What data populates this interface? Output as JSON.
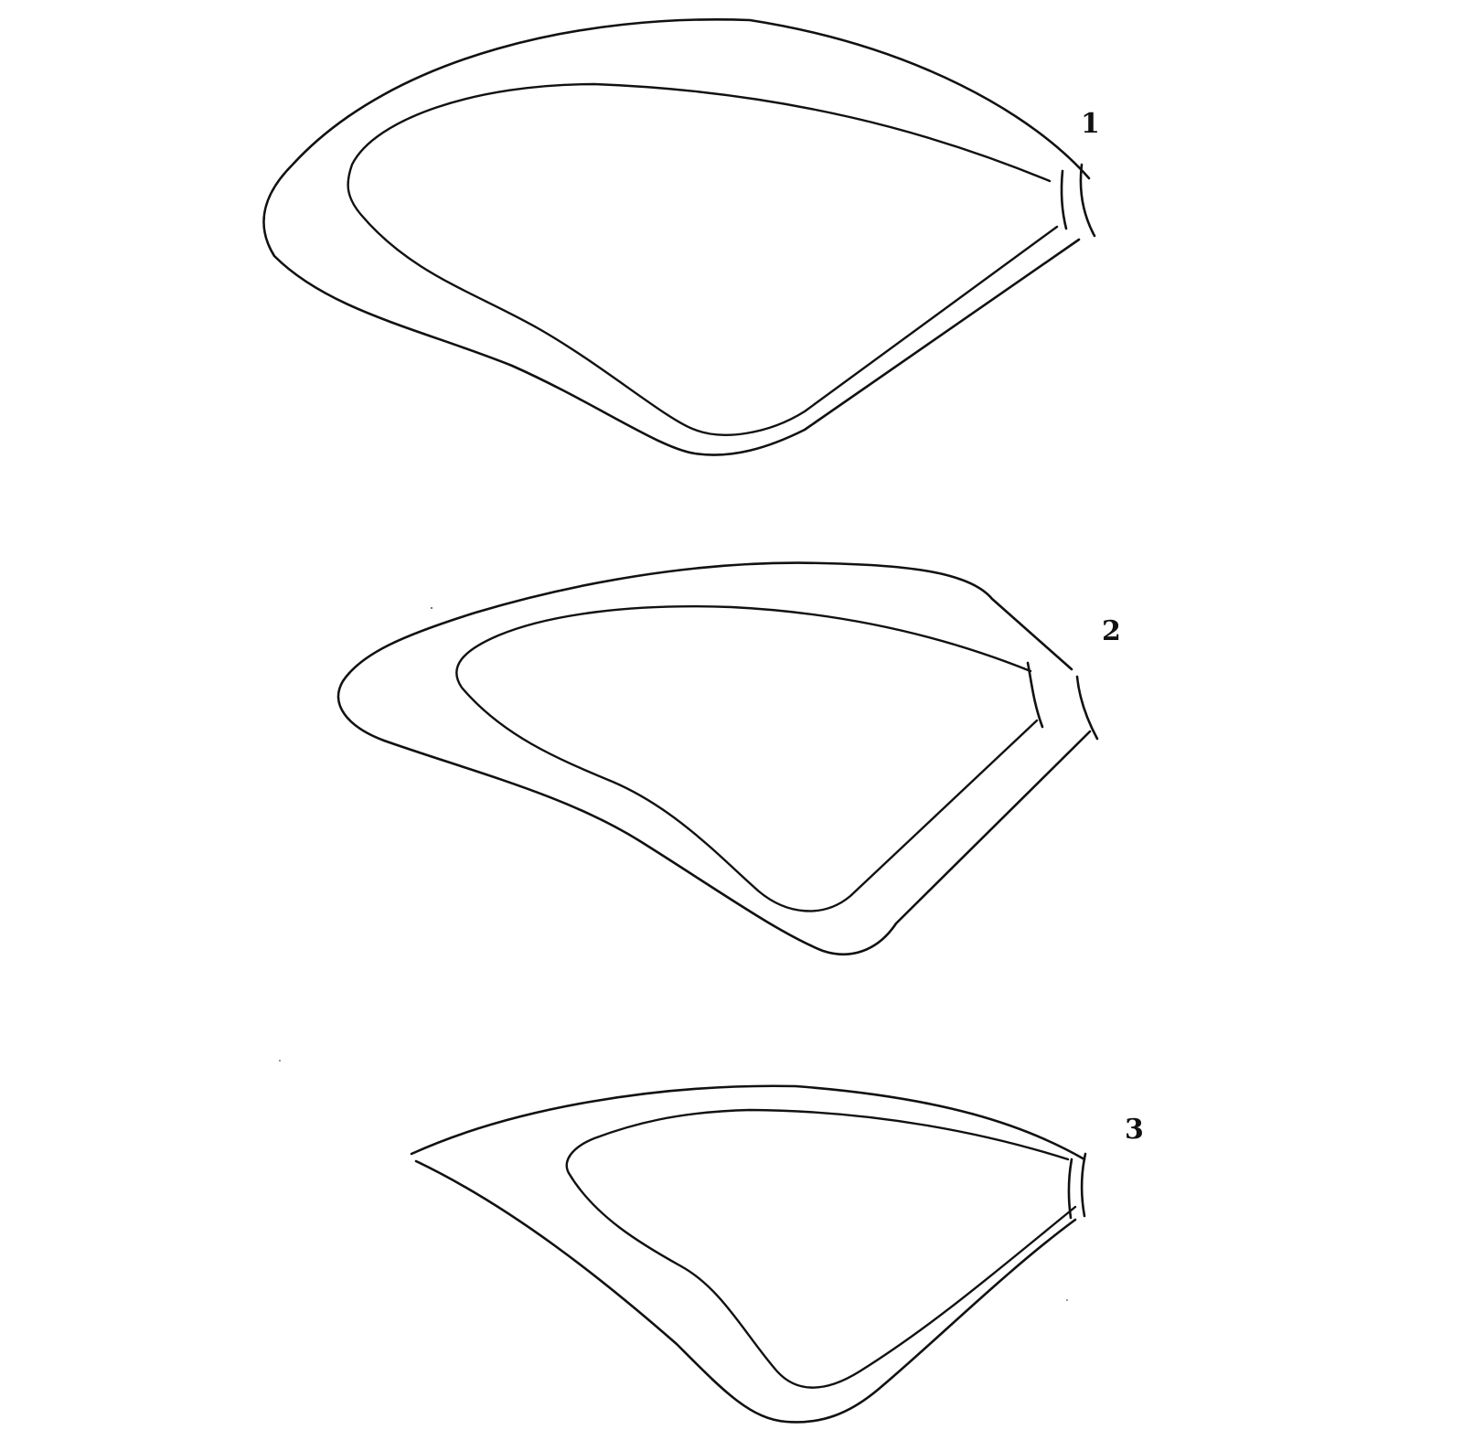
{
  "figures": [
    {
      "number": "1"
    },
    {
      "number": "2"
    },
    {
      "number": "3"
    }
  ],
  "colors": {
    "line": "#111111",
    "background": "#ffffff"
  }
}
